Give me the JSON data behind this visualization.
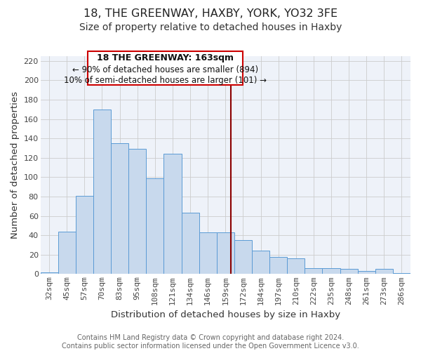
{
  "title": "18, THE GREENWAY, HAXBY, YORK, YO32 3FE",
  "subtitle": "Size of property relative to detached houses in Haxby",
  "xlabel": "Distribution of detached houses by size in Haxby",
  "ylabel": "Number of detached properties",
  "footer_lines": [
    "Contains HM Land Registry data © Crown copyright and database right 2024.",
    "Contains public sector information licensed under the Open Government Licence v3.0."
  ],
  "categories": [
    "32sqm",
    "45sqm",
    "57sqm",
    "70sqm",
    "83sqm",
    "95sqm",
    "108sqm",
    "121sqm",
    "134sqm",
    "146sqm",
    "159sqm",
    "172sqm",
    "184sqm",
    "197sqm",
    "210sqm",
    "222sqm",
    "235sqm",
    "248sqm",
    "261sqm",
    "273sqm",
    "286sqm"
  ],
  "values": [
    2,
    44,
    81,
    170,
    135,
    129,
    99,
    124,
    63,
    43,
    43,
    35,
    24,
    18,
    16,
    6,
    6,
    5,
    3,
    5,
    1
  ],
  "bar_color": "#c8d9ed",
  "bar_edge_color": "#5b9bd5",
  "annotation_box_text_lines": [
    "18 THE GREENWAY: 163sqm",
    "← 90% of detached houses are smaller (894)",
    "10% of semi-detached houses are larger (101) →"
  ],
  "ylim": [
    0,
    225
  ],
  "yticks": [
    0,
    20,
    40,
    60,
    80,
    100,
    120,
    140,
    160,
    180,
    200,
    220
  ],
  "grid_color": "#cccccc",
  "bg_color": "#eef2f9",
  "title_fontsize": 11.5,
  "subtitle_fontsize": 10,
  "axis_label_fontsize": 9.5,
  "tick_fontsize": 8,
  "annotation_fontsize": 9,
  "footer_fontsize": 7
}
